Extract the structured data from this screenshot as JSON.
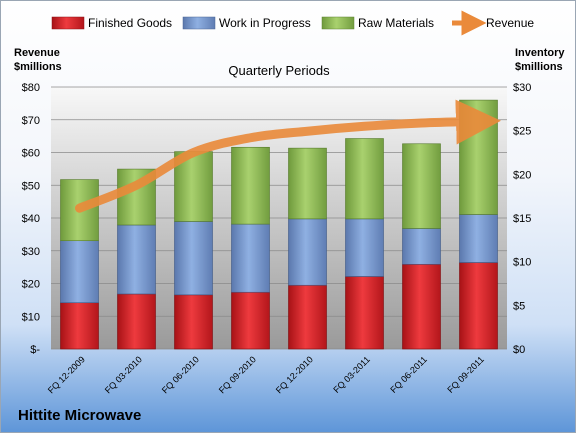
{
  "company": "Hittite Microwave",
  "chart_data": {
    "type": "bar",
    "stacked": true,
    "title": "Quarterly Periods",
    "categories": [
      "FQ 12-2009",
      "FQ 03-2010",
      "FQ 06-2010",
      "FQ 09-2010",
      "FQ 12-2010",
      "FQ 03-2011",
      "FQ 06-2011",
      "FQ 09-2011"
    ],
    "series": [
      {
        "name": "Finished Goods",
        "axis": "right",
        "color": "#e0242a",
        "values": [
          5.3,
          6.3,
          6.2,
          6.5,
          7.3,
          8.3,
          9.7,
          9.9
        ]
      },
      {
        "name": "Work in Progress",
        "axis": "right",
        "color": "#7b9cd3",
        "values": [
          7.1,
          7.9,
          8.4,
          7.8,
          7.6,
          6.6,
          4.1,
          5.5
        ]
      },
      {
        "name": "Raw Materials",
        "axis": "right",
        "color": "#9cc464",
        "values": [
          7.0,
          6.4,
          8.0,
          8.8,
          8.1,
          9.2,
          9.7,
          13.1
        ]
      },
      {
        "name": "Revenue",
        "axis": "left",
        "type": "line",
        "color": "#ea8a3a",
        "values": [
          43,
          50,
          60,
          64.5,
          66.5,
          68,
          69,
          69.5
        ]
      }
    ],
    "left_axis": {
      "label_line1": "Revenue",
      "label_line2": "$millions",
      "ylim": [
        0,
        80
      ],
      "ticks": [
        "$-",
        "$10",
        "$20",
        "$30",
        "$40",
        "$50",
        "$60",
        "$70",
        "$80"
      ]
    },
    "right_axis": {
      "label_line1": "Inventory",
      "label_line2": "$millions",
      "ylim": [
        0,
        30
      ],
      "ticks": [
        "$0",
        "$5",
        "$10",
        "$15",
        "$20",
        "$25",
        "$30"
      ]
    },
    "legend_position": "top",
    "grid": true
  }
}
